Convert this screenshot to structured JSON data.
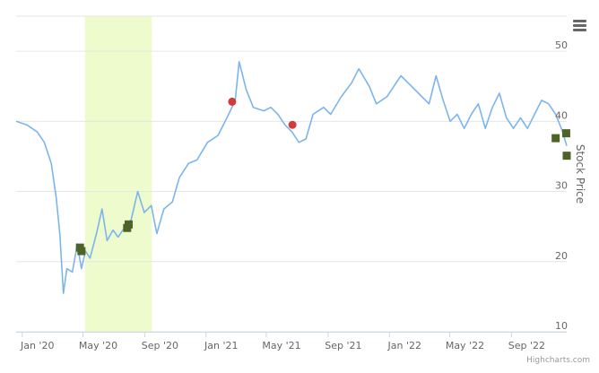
{
  "chart_data": {
    "type": "line",
    "ylabel": "Stock Price",
    "ylim": [
      10,
      55
    ],
    "y_ticks": [
      "10",
      "20",
      "30",
      "40",
      "50"
    ],
    "x_range": [
      "2019-12-20",
      "2022-12-20"
    ],
    "x_ticks": [
      {
        "date": "2020-01-01",
        "label": "Jan '20"
      },
      {
        "date": "2020-05-01",
        "label": "May '20"
      },
      {
        "date": "2020-09-01",
        "label": "Sep '20"
      },
      {
        "date": "2021-01-01",
        "label": "Jan '21"
      },
      {
        "date": "2021-05-01",
        "label": "May '21"
      },
      {
        "date": "2021-09-01",
        "label": "Sep '21"
      },
      {
        "date": "2022-01-01",
        "label": "Jan '22"
      },
      {
        "date": "2022-05-01",
        "label": "May '22"
      },
      {
        "date": "2022-09-01",
        "label": "Sep '22"
      }
    ],
    "grid": true,
    "line_color": "#7cb5ec",
    "highlight_band": {
      "from": "2020-05-05",
      "to": "2020-09-15",
      "color": "#eefbcd"
    },
    "series": [
      {
        "type": "line",
        "color": "#7cb5ec",
        "points": [
          [
            "2019-12-20",
            40.0
          ],
          [
            "2020-01-10",
            39.5
          ],
          [
            "2020-01-31",
            38.5
          ],
          [
            "2020-02-14",
            37.0
          ],
          [
            "2020-02-28",
            34.0
          ],
          [
            "2020-03-09",
            29.0
          ],
          [
            "2020-03-16",
            24.0
          ],
          [
            "2020-03-23",
            15.5
          ],
          [
            "2020-03-30",
            19.0
          ],
          [
            "2020-04-10",
            18.5
          ],
          [
            "2020-04-20",
            22.5
          ],
          [
            "2020-04-28",
            19.0
          ],
          [
            "2020-05-06",
            21.5
          ],
          [
            "2020-05-15",
            20.5
          ],
          [
            "2020-05-28",
            24.0
          ],
          [
            "2020-06-08",
            27.5
          ],
          [
            "2020-06-18",
            23.0
          ],
          [
            "2020-06-30",
            24.5
          ],
          [
            "2020-07-10",
            23.5
          ],
          [
            "2020-07-24",
            25.0
          ],
          [
            "2020-08-05",
            26.0
          ],
          [
            "2020-08-18",
            30.0
          ],
          [
            "2020-08-31",
            27.0
          ],
          [
            "2020-09-14",
            28.0
          ],
          [
            "2020-09-25",
            24.0
          ],
          [
            "2020-10-09",
            27.5
          ],
          [
            "2020-10-26",
            28.5
          ],
          [
            "2020-11-09",
            32.0
          ],
          [
            "2020-11-27",
            34.0
          ],
          [
            "2020-12-14",
            34.5
          ],
          [
            "2021-01-04",
            37.0
          ],
          [
            "2021-01-25",
            38.0
          ],
          [
            "2021-02-15",
            41.0
          ],
          [
            "2021-02-28",
            43.0
          ],
          [
            "2021-03-08",
            48.5
          ],
          [
            "2021-03-22",
            44.5
          ],
          [
            "2021-04-05",
            42.0
          ],
          [
            "2021-04-26",
            41.5
          ],
          [
            "2021-05-10",
            42.0
          ],
          [
            "2021-05-24",
            41.0
          ],
          [
            "2021-06-07",
            39.5
          ],
          [
            "2021-06-21",
            38.5
          ],
          [
            "2021-07-05",
            37.0
          ],
          [
            "2021-07-19",
            37.5
          ],
          [
            "2021-08-02",
            41.0
          ],
          [
            "2021-08-23",
            42.0
          ],
          [
            "2021-09-06",
            41.0
          ],
          [
            "2021-09-27",
            43.5
          ],
          [
            "2021-10-18",
            45.5
          ],
          [
            "2021-11-01",
            47.5
          ],
          [
            "2021-11-22",
            45.0
          ],
          [
            "2021-12-06",
            42.5
          ],
          [
            "2021-12-27",
            43.5
          ],
          [
            "2022-01-10",
            45.0
          ],
          [
            "2022-01-24",
            46.5
          ],
          [
            "2022-02-07",
            45.5
          ],
          [
            "2022-02-28",
            44.0
          ],
          [
            "2022-03-21",
            42.5
          ],
          [
            "2022-04-04",
            46.5
          ],
          [
            "2022-04-18",
            43.0
          ],
          [
            "2022-05-02",
            40.0
          ],
          [
            "2022-05-16",
            41.0
          ],
          [
            "2022-05-30",
            39.0
          ],
          [
            "2022-06-13",
            41.0
          ],
          [
            "2022-06-27",
            42.5
          ],
          [
            "2022-07-11",
            39.0
          ],
          [
            "2022-07-25",
            42.0
          ],
          [
            "2022-08-08",
            44.0
          ],
          [
            "2022-08-22",
            40.5
          ],
          [
            "2022-09-05",
            39.0
          ],
          [
            "2022-09-19",
            40.5
          ],
          [
            "2022-10-03",
            39.0
          ],
          [
            "2022-10-17",
            41.0
          ],
          [
            "2022-10-31",
            43.0
          ],
          [
            "2022-11-14",
            42.5
          ],
          [
            "2022-11-28",
            41.0
          ],
          [
            "2022-12-12",
            38.5
          ],
          [
            "2022-12-20",
            36.5
          ]
        ]
      },
      {
        "type": "scatter",
        "marker": "square",
        "color": "#4e6426",
        "points": [
          [
            "2020-04-25",
            22.0
          ],
          [
            "2020-04-28",
            21.5
          ],
          [
            "2020-07-28",
            24.8
          ],
          [
            "2020-07-31",
            25.3
          ],
          [
            "2022-11-28",
            37.6
          ],
          [
            "2022-12-19",
            38.3
          ],
          [
            "2022-12-20",
            35.1
          ]
        ]
      },
      {
        "type": "scatter",
        "marker": "circle",
        "color": "#d13b3b",
        "points": [
          [
            "2021-02-22",
            42.8
          ],
          [
            "2021-06-22",
            39.5
          ]
        ]
      }
    ]
  },
  "ui": {
    "credits": "Highcharts.com",
    "menu_icon": "hamburger-menu-icon"
  }
}
